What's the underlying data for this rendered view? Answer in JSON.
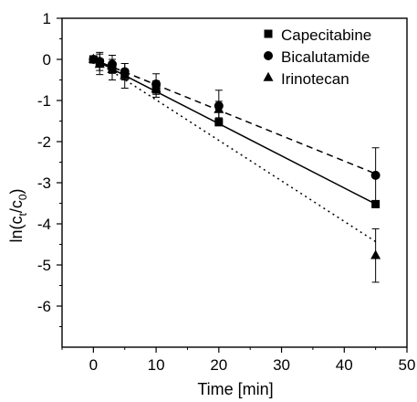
{
  "chart_data": {
    "type": "scatter",
    "xlabel": "Time [min]",
    "ylabel_parts": {
      "base": "ln(c",
      "sub1": "t",
      "mid": "/c",
      "sub2": "0",
      "end": ")"
    },
    "xlim": [
      -5,
      50
    ],
    "ylim": [
      -7,
      1
    ],
    "xticks": [
      0,
      10,
      20,
      30,
      40,
      50
    ],
    "yticks": [
      1,
      0,
      -1,
      -2,
      -3,
      -4,
      -5,
      -6
    ],
    "legend_position": "top-right",
    "series": [
      {
        "name": "Capecitabine",
        "marker": "square",
        "x": [
          0,
          1,
          3,
          5,
          10,
          20,
          45
        ],
        "y": [
          0.0,
          -0.08,
          -0.2,
          -0.35,
          -0.72,
          -1.53,
          -3.52
        ],
        "err": [
          0.0,
          0.08,
          0.1,
          0.12,
          0.1,
          0.05,
          0.05
        ],
        "fit": {
          "style": "solid",
          "slope": -0.0782,
          "intercept": 0.0,
          "x_range": [
            0,
            45
          ]
        }
      },
      {
        "name": "Bicalutamide",
        "marker": "circle",
        "x": [
          0,
          1,
          3,
          5,
          10,
          20,
          45
        ],
        "y": [
          0.0,
          -0.05,
          -0.12,
          -0.3,
          -0.6,
          -1.13,
          -2.82
        ],
        "err": [
          0.0,
          0.22,
          0.22,
          0.2,
          0.25,
          0.38,
          0.67
        ],
        "fit": {
          "style": "dashed",
          "slope": -0.0618,
          "intercept": 0.0,
          "x_range": [
            0,
            45
          ]
        }
      },
      {
        "name": "Irinotecan",
        "marker": "triangle",
        "x": [
          0,
          1,
          3,
          5,
          10,
          20,
          45
        ],
        "y": [
          0.0,
          -0.12,
          -0.25,
          -0.4,
          -0.72,
          -1.22,
          -4.77
        ],
        "err": [
          0.0,
          0.25,
          0.25,
          0.3,
          0.2,
          0.2,
          0.65
        ],
        "fit": {
          "style": "dotted",
          "slope": -0.0985,
          "intercept": 0.0,
          "x_range": [
            0,
            45
          ]
        }
      }
    ]
  }
}
